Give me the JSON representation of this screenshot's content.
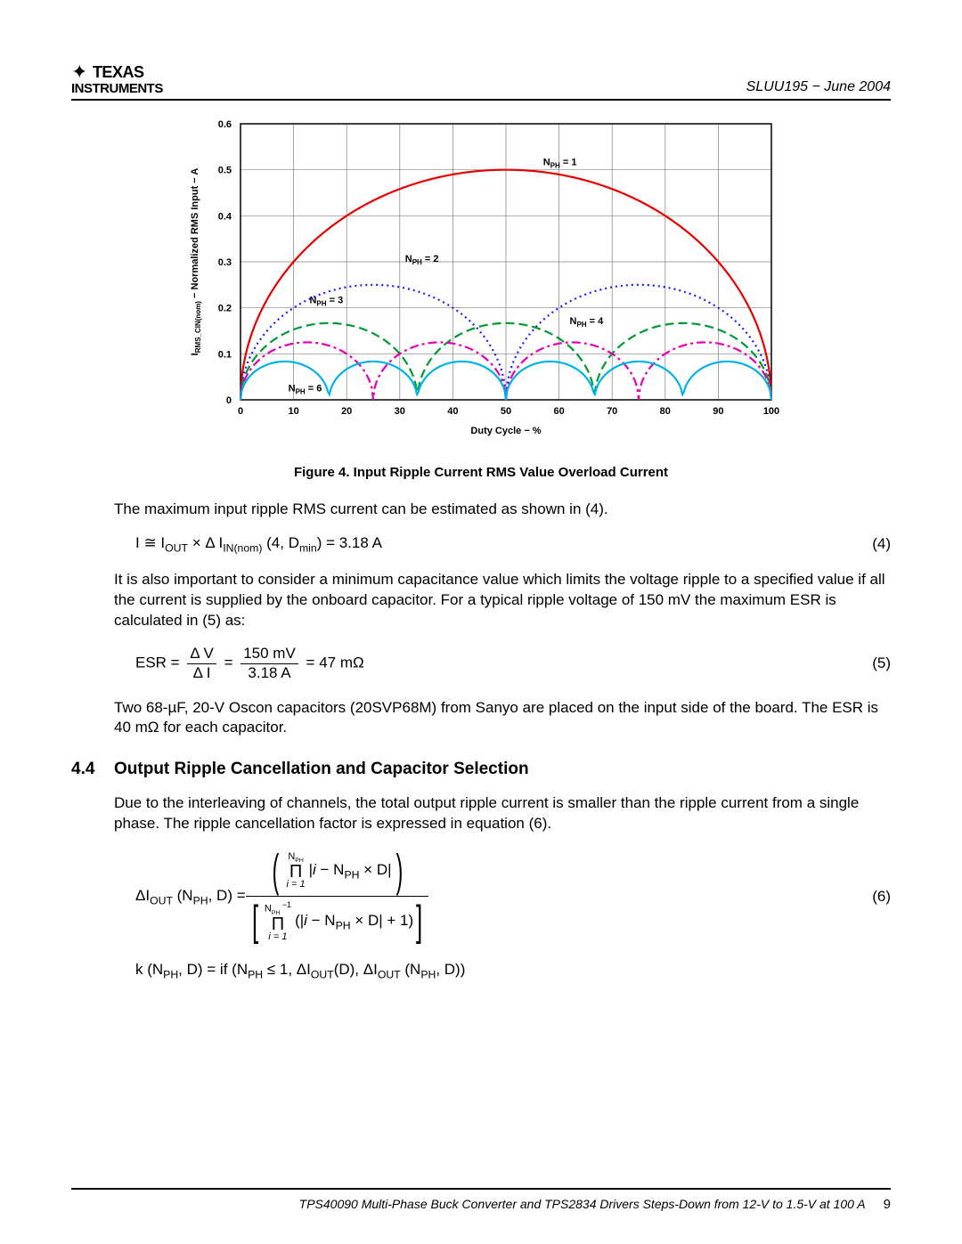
{
  "doc": {
    "meta": "SLUU195 − June 2004",
    "footer_title": "TPS40090 Multi-Phase Buck Converter and TPS2834 Drivers Steps-Down from 12-V to 1.5-V at 100 A",
    "page_num": "9"
  },
  "logo": {
    "top": " TEXAS",
    "bottom": "INSTRUMENTS"
  },
  "chart": {
    "type": "line",
    "xlabel": "Duty Cycle − %",
    "ylabel": "IRMS_CIN(nom) − Normalized RMS Input − A",
    "xlim": [
      0,
      100
    ],
    "ylim": [
      0,
      0.6
    ],
    "x_ticks": [
      0,
      10,
      20,
      30,
      40,
      50,
      60,
      70,
      80,
      90,
      100
    ],
    "y_ticks": [
      0,
      0.1,
      0.2,
      0.3,
      0.4,
      0.5,
      0.6
    ],
    "grid_color": "#808080",
    "axis_color": "#000000",
    "background_color": "#ffffff",
    "axis_label_fontsize": 11,
    "tick_fontsize": 11,
    "line_width": 2.2,
    "labels": {
      "n1": "NPH = 1",
      "n2": "NPH = 2",
      "n3": "NPH = 3",
      "n4": "NPH = 4",
      "n6": "NPH = 6"
    },
    "series": [
      {
        "n": 1,
        "color": "#e60000",
        "dash": ""
      },
      {
        "n": 2,
        "color": "#1a1aff",
        "dash": "2 4"
      },
      {
        "n": 3,
        "color": "#009933",
        "dash": "10 5"
      },
      {
        "n": 4,
        "color": "#e600b3",
        "dash": "10 4 3 4"
      },
      {
        "n": 6,
        "color": "#00b3e6",
        "dash": ""
      }
    ]
  },
  "figure_caption": "Figure 4. Input Ripple Current RMS Value Overload Current",
  "paragraphs": {
    "p1": "The maximum input ripple RMS current can be estimated as shown in (4).",
    "p2": "It is also important to consider a minimum capacitance value which limits the voltage ripple to a specified value if all the current is supplied by the onboard capacitor. For a typical ripple voltage of 150 mV the maximum ESR is calculated in (5) as:",
    "p3": "Two 68-µF, 20-V Oscon capacitors (20SVP68M) from Sanyo are placed on the input side of the board. The ESR is 40 mΩ for each capacitor.",
    "p4": "Due to the interleaving of channels, the total output ripple current is smaller than the ripple current from a single phase. The ripple cancellation factor is expressed in equation (6)."
  },
  "section": {
    "num": "4.4",
    "title": "Output Ripple Cancellation and Capacitor Selection"
  },
  "equations": {
    "eq4": {
      "text_parts": {
        "lhs": "I ≅ I",
        "out": "OUT",
        "mid": " × Δ I",
        "innom": "IN(nom)",
        "args": " (4, D",
        "min": "min",
        "result": ") = 3.18 A"
      },
      "num": "(4)"
    },
    "eq5": {
      "lhs": "ESR = ",
      "frac1_num": "Δ V",
      "frac1_den": "Δ I",
      "eq1": " = ",
      "frac2_num": "150 mV",
      "frac2_den": "3.18 A",
      "result": " = 47 mΩ",
      "num": "(5)"
    },
    "eq6": {
      "lhs": "ΔI",
      "out": "OUT",
      "args": " (N",
      "ph": "PH",
      "dd": ", D) = ",
      "top_prod_top": "NPH",
      "top_prod_bot": "i = 1",
      "top_body": "|i − NPH × D|",
      "bot_prod_top": "NPH −1",
      "bot_prod_bot": "i = 1",
      "bot_body": "(|i − NPH × D| + 1)",
      "num": "(6)"
    },
    "eq6b": {
      "text": "k (NPH, D) = if (NPH ≤ 1, ΔIOUT(D), ΔIOUT (NPH, D))"
    }
  }
}
